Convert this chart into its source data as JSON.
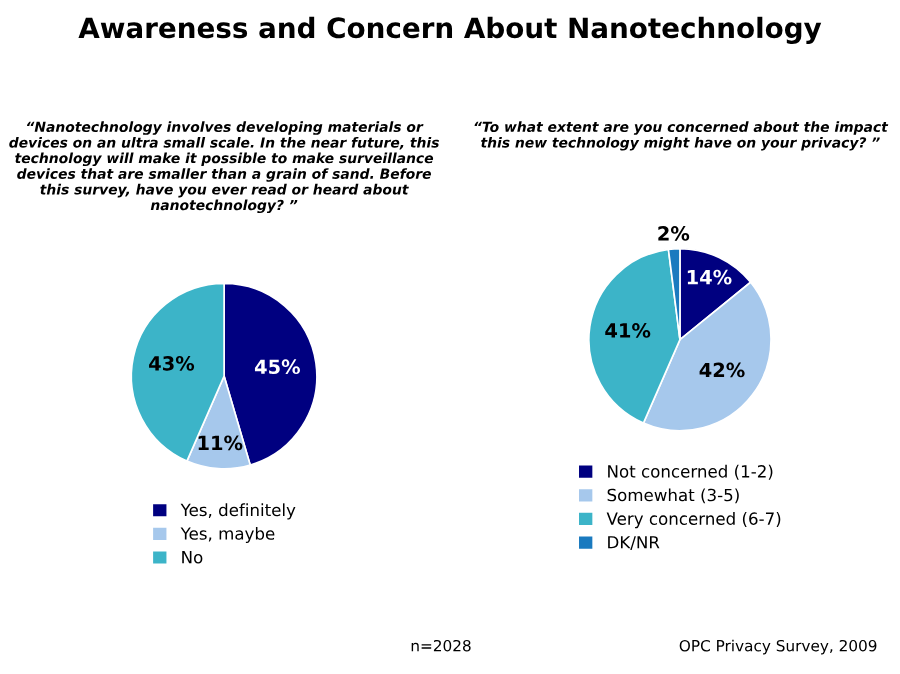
{
  "chart_data": [
    {
      "type": "pie",
      "title": "Awareness and Concern About Nanotechnology",
      "subtitle": "“Nanotechnology involves developing materials or devices on an ultra small scale. In the near future, this technology will make it possible to make surveillance devices that are smaller than a grain of sand. Before this survey, have you ever read or heard about nanotechnology? ”",
      "categories": [
        "Yes, definitely",
        "Yes, maybe",
        "No"
      ],
      "values": [
        45,
        11,
        43
      ],
      "value_labels": [
        "45%",
        "11%",
        "43%"
      ],
      "colors": [
        "#000080",
        "#a6c8ec",
        "#3cb4c8"
      ],
      "legend": "bottom"
    },
    {
      "type": "pie",
      "title": "“To what extent are you concerned about the impact this new technology might have on your privacy? ”",
      "categories": [
        "Not concerned (1-2)",
        "Somewhat (3-5)",
        "Very concerned (6-7)",
        "DK/NR"
      ],
      "values": [
        14,
        42,
        41,
        2
      ],
      "value_labels": [
        "14%",
        "42%",
        "41%",
        "2%"
      ],
      "colors": [
        "#000080",
        "#a6c8ec",
        "#3cb4c8",
        "#1a7abf"
      ],
      "legend": "bottom",
      "annotations": [
        "n=2028",
        "OPC Privacy Survey, 2009"
      ]
    }
  ]
}
